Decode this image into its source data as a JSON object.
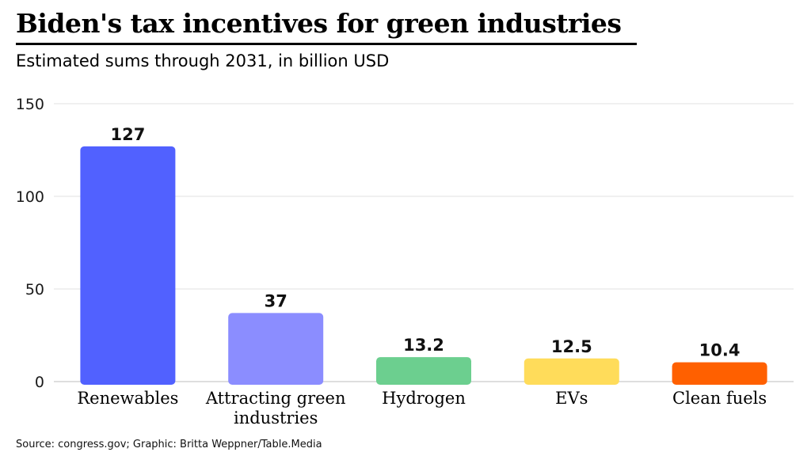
{
  "title": "Biden's tax incentives for green industries",
  "subtitle": "Estimated sums through 2031, in billion USD",
  "source": "Source: congress.gov; Graphic: Britta Weppner/Table.Media",
  "chart_data": {
    "type": "bar",
    "title": "Biden's tax incentives for green industries",
    "subtitle": "Estimated sums through 2031, in billion USD",
    "categories": [
      "Renewables",
      "Attracting green industries",
      "Hydrogen",
      "EVs",
      "Clean fuels"
    ],
    "category_lines": [
      [
        "Renewables"
      ],
      [
        "Attracting green",
        "industries"
      ],
      [
        "Hydrogen"
      ],
      [
        "EVs"
      ],
      [
        "Clean fuels"
      ]
    ],
    "values": [
      127,
      37,
      13.2,
      12.5,
      10.4
    ],
    "value_labels": [
      "127",
      "37",
      "13.2",
      "12.5",
      "10.4"
    ],
    "colors": [
      "#5161ff",
      "#8b8dff",
      "#6ccf8f",
      "#ffdc5a",
      "#ff6000"
    ],
    "xlabel": "",
    "ylabel": "",
    "ylim": [
      0,
      150
    ],
    "yticks": [
      0,
      50,
      100,
      150
    ],
    "grid": true,
    "legend": "none"
  }
}
